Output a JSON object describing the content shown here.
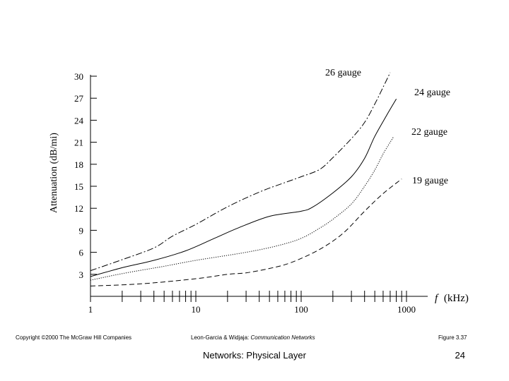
{
  "chart_data": {
    "type": "line",
    "xscale": "log",
    "xlim": [
      1,
      1000
    ],
    "ylim": [
      0,
      30
    ],
    "x_tick_labels": [
      "1",
      "10",
      "100",
      "1000"
    ],
    "y_ticks": [
      3,
      6,
      9,
      12,
      15,
      18,
      21,
      24,
      27,
      30
    ],
    "xlabel_symbol": "f",
    "xlabel_unit": "(kHz)",
    "ylabel": "Attenuation (dB/mi)",
    "series": [
      {
        "name": "26 gauge",
        "style": "dashdot",
        "points": [
          [
            1,
            3.5
          ],
          [
            2,
            5.0
          ],
          [
            4,
            6.6
          ],
          [
            6,
            8.2
          ],
          [
            10,
            9.8
          ],
          [
            20,
            12.2
          ],
          [
            40,
            14.2
          ],
          [
            70,
            15.5
          ],
          [
            100,
            16.3
          ],
          [
            150,
            17.3
          ],
          [
            200,
            18.9
          ],
          [
            300,
            21.5
          ],
          [
            400,
            23.7
          ],
          [
            500,
            26.2
          ],
          [
            600,
            28.5
          ],
          [
            700,
            30.5
          ]
        ]
      },
      {
        "name": "24 gauge",
        "style": "solid",
        "points": [
          [
            1,
            2.7
          ],
          [
            2,
            3.9
          ],
          [
            4,
            4.9
          ],
          [
            8,
            6.2
          ],
          [
            15,
            7.9
          ],
          [
            25,
            9.3
          ],
          [
            50,
            10.9
          ],
          [
            100,
            11.6
          ],
          [
            130,
            12.2
          ],
          [
            200,
            14.1
          ],
          [
            300,
            16.3
          ],
          [
            400,
            18.8
          ],
          [
            500,
            21.8
          ],
          [
            650,
            24.7
          ],
          [
            800,
            26.9
          ]
        ]
      },
      {
        "name": "22 gauge",
        "style": "dotted",
        "points": [
          [
            1,
            2.2
          ],
          [
            2,
            3.1
          ],
          [
            5,
            4.1
          ],
          [
            10,
            4.9
          ],
          [
            30,
            6.0
          ],
          [
            60,
            6.9
          ],
          [
            100,
            7.9
          ],
          [
            150,
            9.3
          ],
          [
            200,
            10.5
          ],
          [
            300,
            12.6
          ],
          [
            400,
            15.0
          ],
          [
            500,
            17.2
          ],
          [
            600,
            19.4
          ],
          [
            750,
            21.7
          ]
        ]
      },
      {
        "name": "19 gauge",
        "style": "dashed",
        "points": [
          [
            1,
            1.4
          ],
          [
            3,
            1.7
          ],
          [
            10,
            2.4
          ],
          [
            20,
            3.0
          ],
          [
            30,
            3.2
          ],
          [
            50,
            3.8
          ],
          [
            80,
            4.6
          ],
          [
            150,
            6.4
          ],
          [
            250,
            8.6
          ],
          [
            400,
            11.6
          ],
          [
            600,
            14.0
          ],
          [
            900,
            16.0
          ]
        ]
      }
    ]
  },
  "footer": {
    "copyright": "Copyright ©2000 The McGraw Hill Companies",
    "citation_authors": "Leon-Garcia & Widjaja: ",
    "citation_book": "Communication Networks",
    "figure": "Figure 3.37",
    "slide_title": "Networks: Physical Layer",
    "page_number": "24"
  },
  "colors": {
    "ink": "#000000",
    "background": "#ffffff"
  }
}
